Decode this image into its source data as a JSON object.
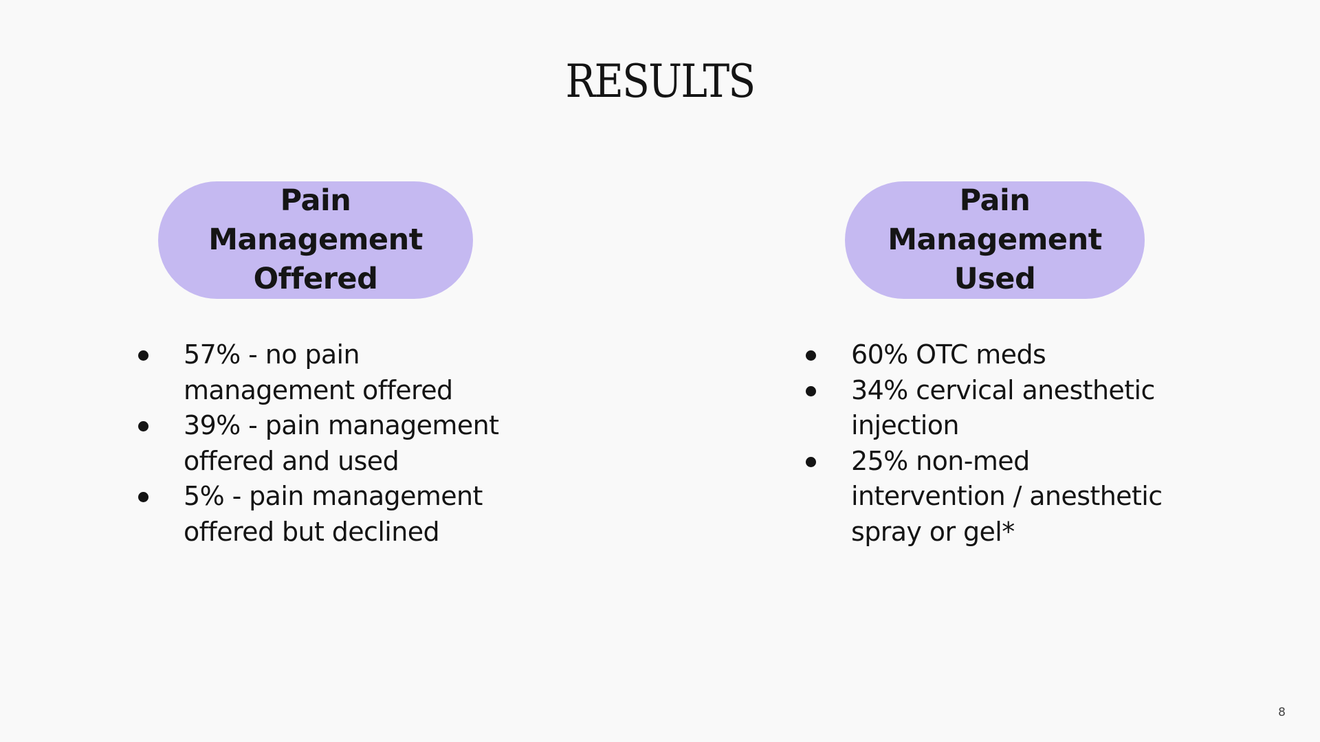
{
  "slide": {
    "title": "RESULTS",
    "page_number": "8"
  },
  "left": {
    "heading": "Pain\nManagement\nOffered",
    "items": [
      {
        "text": "57% - no pain\nmanagement offered"
      },
      {
        "text": "39% - pain management\noffered and used"
      },
      {
        "text": "5% - pain management\noffered but declined"
      }
    ]
  },
  "right": {
    "heading": "Pain\nManagement\nUsed",
    "items": [
      {
        "text": "60% OTC meds"
      },
      {
        "text": "34% cervical anesthetic\ninjection"
      },
      {
        "text": "25% non-med\nintervention / anesthetic\nspray or gel*"
      }
    ]
  },
  "colors": {
    "background": "#f9f9f9",
    "pill": "#c5b9f1",
    "text": "#141414"
  }
}
